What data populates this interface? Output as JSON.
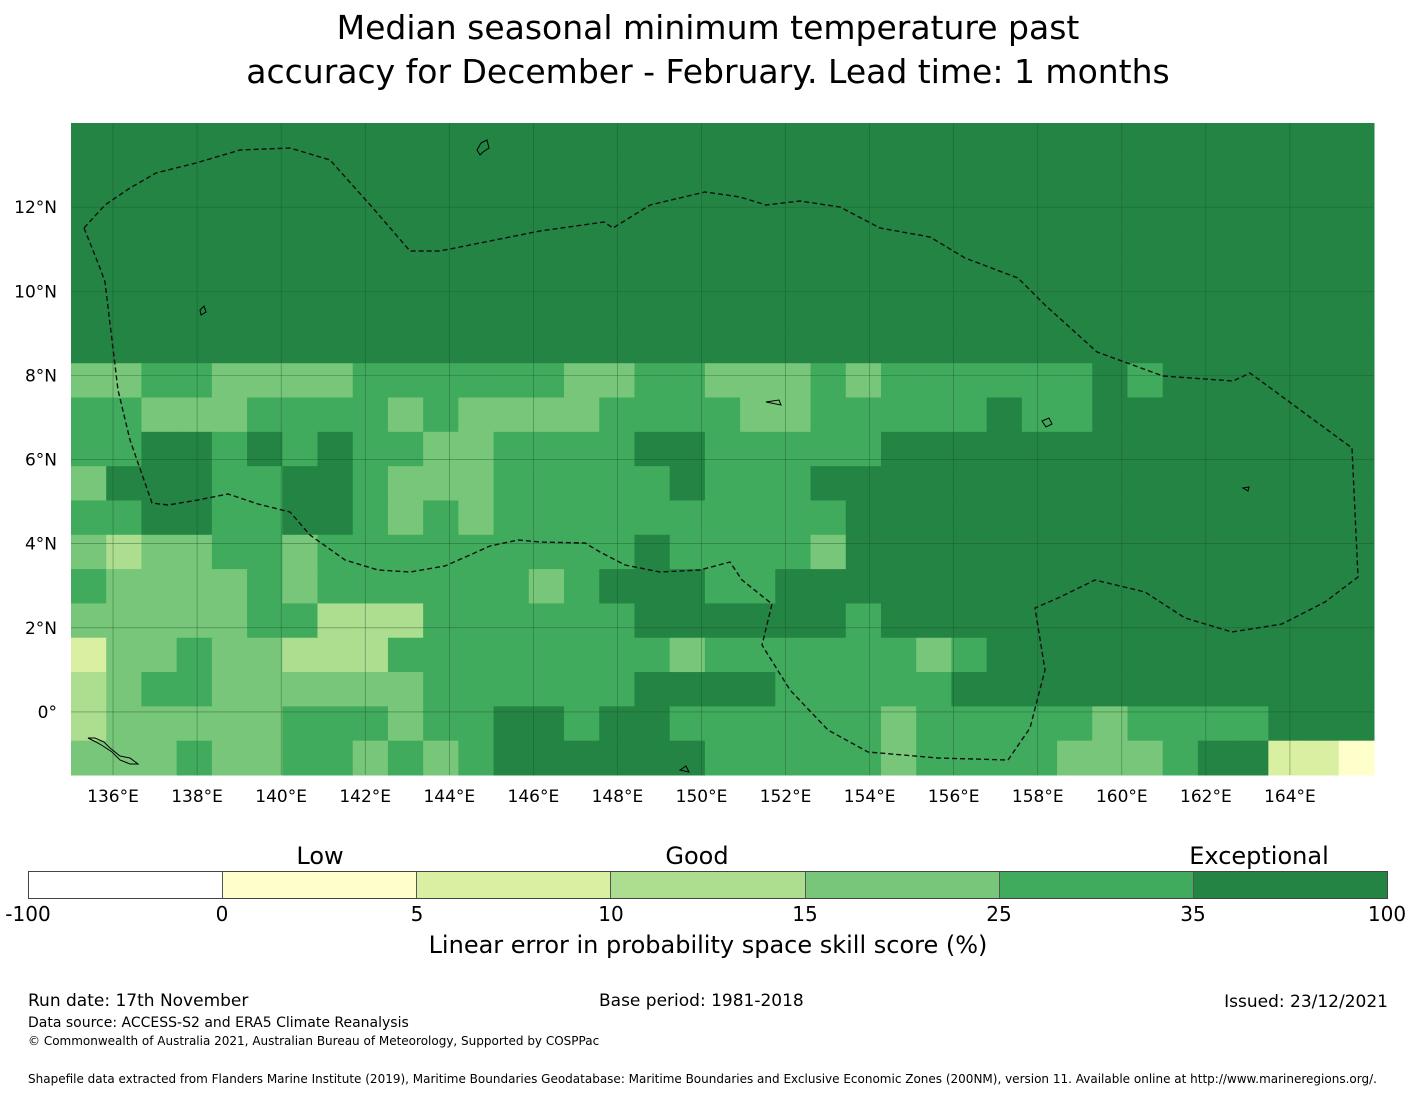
{
  "title_line1": "Median seasonal minimum temperature past",
  "title_line2": "accuracy for December - February. Lead time: 1 months",
  "map": {
    "lon_range": [
      135,
      166
    ],
    "lat_range": [
      -1.5,
      14
    ],
    "lon_ticks": [
      "136°E",
      "138°E",
      "140°E",
      "142°E",
      "144°E",
      "146°E",
      "148°E",
      "150°E",
      "152°E",
      "154°E",
      "156°E",
      "158°E",
      "160°E",
      "162°E",
      "164°E"
    ],
    "lat_ticks": [
      "12°N",
      "10°N",
      "8°N",
      "6°N",
      "4°N",
      "2°N",
      "0°"
    ],
    "skill_categories": [
      {
        "range": "-100 to 0",
        "color": "#ffffff"
      },
      {
        "range": "0 to 5",
        "color": "#ffffcc"
      },
      {
        "range": "5 to 10",
        "color": "#d9f0a3"
      },
      {
        "range": "10 to 15",
        "color": "#addd8e"
      },
      {
        "range": "15 to 25",
        "color": "#78c679"
      },
      {
        "range": "25 to 35",
        "color": "#41ab5d"
      },
      {
        "range": "35 to 100",
        "color": "#238443"
      }
    ]
  },
  "colorbar": {
    "labels": [
      "Low",
      "Good",
      "Exceptional"
    ],
    "ticks": [
      "-100",
      "0",
      "5",
      "10",
      "15",
      "25",
      "35",
      "100"
    ],
    "title": "Linear error in probability space skill score (%)"
  },
  "footer": {
    "run_date": "Run date: 17th November",
    "base_period": "Base period: 1981-2018",
    "issued": "Issued: 23/12/2021",
    "data_source": "Data source: ACCESS-S2 and ERA5 Climate Reanalysis",
    "copyright": "© Commonwealth of Australia 2021, Australian Bureau of Meteorology, Supported by COSPPac",
    "shapefile": "Shapefile data extracted from Flanders Marine Institute (2019), Maritime Boundaries Geodatabase: Maritime Boundaries and Exclusive Economic Zones (200NM), version 11. Available online at http://www.marineregions.org/."
  }
}
